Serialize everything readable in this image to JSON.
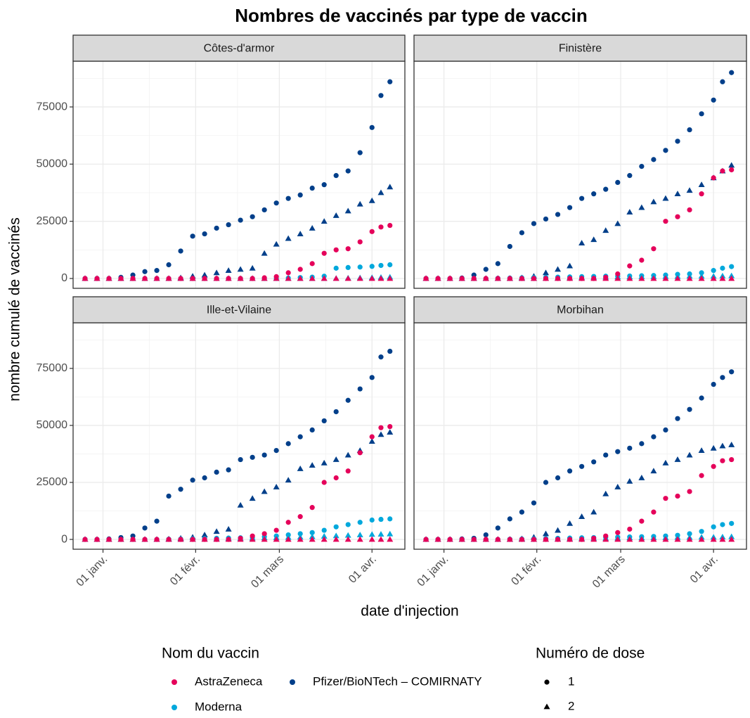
{
  "chart_data": {
    "type": "scatter",
    "title": "Nombres de vaccinés par type de vaccin",
    "xlabel": "date d'injection",
    "ylabel": "nombre cumulé de vaccinés",
    "x": [
      "12-26",
      "12-30",
      "01-03",
      "01-07",
      "01-11",
      "01-15",
      "01-19",
      "01-23",
      "01-27",
      "01-31",
      "02-04",
      "02-08",
      "02-12",
      "02-16",
      "02-20",
      "02-24",
      "02-28",
      "03-04",
      "03-08",
      "03-12",
      "03-16",
      "03-20",
      "03-24",
      "03-28",
      "04-01",
      "04-04",
      "04-07"
    ],
    "xlim": [
      "12-22",
      "04-12"
    ],
    "xticks": [
      {
        "value": "01-01",
        "label": "01 janv."
      },
      {
        "value": "02-01",
        "label": "01 févr."
      },
      {
        "value": "03-01",
        "label": "01 mars"
      },
      {
        "value": "04-01",
        "label": "01 avr."
      }
    ],
    "ylim": [
      -4300,
      95000
    ],
    "yticks": [
      0,
      25000,
      50000,
      75000
    ],
    "grid": true,
    "legend_vaccine_title": "Nom du vaccin",
    "legend_dose_title": "Numéro de dose",
    "vaccines": [
      {
        "name": "AstraZeneca",
        "color": "#e5005a"
      },
      {
        "name": "Pfizer/BioNTech – COMIRNATY",
        "color": "#003f8a"
      },
      {
        "name": "Moderna",
        "color": "#00a8dc"
      }
    ],
    "doses": [
      {
        "name": "1",
        "shape": "circle"
      },
      {
        "name": "2",
        "shape": "triangle"
      }
    ],
    "facets": [
      {
        "name": "Côtes-d'armor",
        "series": [
          {
            "vaccine": "Pfizer/BioNTech – COMIRNATY",
            "dose": "1",
            "values": [
              0,
              0,
              0,
              500,
              1500,
              3000,
              3500,
              6000,
              12000,
              18500,
              19500,
              22000,
              23500,
              25500,
              27000,
              30000,
              33000,
              35000,
              36500,
              39500,
              41000,
              45000,
              47000,
              55000,
              66000,
              80000,
              86000
            ]
          },
          {
            "vaccine": "Pfizer/BioNTech – COMIRNATY",
            "dose": "2",
            "values": [
              0,
              0,
              0,
              0,
              0,
              0,
              0,
              0,
              300,
              1000,
              1500,
              2500,
              3500,
              4000,
              4500,
              11000,
              15000,
              17500,
              19500,
              22000,
              25000,
              27500,
              29500,
              32500,
              34000,
              37500,
              40000
            ]
          },
          {
            "vaccine": "Moderna",
            "dose": "1",
            "values": [
              0,
              0,
              0,
              0,
              0,
              0,
              0,
              0,
              0,
              0,
              0,
              0,
              0,
              0,
              0,
              0,
              0,
              200,
              400,
              600,
              1000,
              4500,
              4800,
              5000,
              5300,
              5700,
              6000
            ]
          },
          {
            "vaccine": "Moderna",
            "dose": "2",
            "values": [
              0,
              0,
              0,
              0,
              0,
              0,
              0,
              0,
              0,
              0,
              0,
              0,
              0,
              0,
              0,
              0,
              0,
              0,
              0,
              0,
              0,
              100,
              200,
              300,
              400,
              500,
              600
            ]
          },
          {
            "vaccine": "AstraZeneca",
            "dose": "1",
            "values": [
              0,
              0,
              0,
              0,
              0,
              0,
              0,
              0,
              0,
              0,
              0,
              0,
              0,
              0,
              0,
              300,
              800,
              2500,
              4000,
              6500,
              11000,
              12500,
              13000,
              16000,
              20500,
              22500,
              23200
            ]
          },
          {
            "vaccine": "AstraZeneca",
            "dose": "2",
            "values": [
              0,
              0,
              0,
              0,
              0,
              0,
              0,
              0,
              0,
              0,
              0,
              0,
              0,
              0,
              0,
              0,
              0,
              0,
              0,
              0,
              0,
              0,
              0,
              0,
              0,
              0,
              0
            ]
          }
        ]
      },
      {
        "name": "Finistère",
        "series": [
          {
            "vaccine": "Pfizer/BioNTech – COMIRNATY",
            "dose": "1",
            "values": [
              0,
              0,
              0,
              200,
              1500,
              4000,
              6500,
              14000,
              20000,
              24000,
              26000,
              28000,
              31000,
              35000,
              37000,
              39000,
              42000,
              45000,
              49000,
              52000,
              56000,
              60000,
              65000,
              72000,
              78000,
              86000,
              90000
            ]
          },
          {
            "vaccine": "Pfizer/BioNTech – COMIRNATY",
            "dose": "2",
            "values": [
              0,
              0,
              0,
              0,
              0,
              0,
              0,
              0,
              300,
              1000,
              2500,
              4000,
              5500,
              15500,
              17000,
              21000,
              24000,
              29000,
              31000,
              33500,
              35000,
              37000,
              38500,
              41000,
              44000,
              47000,
              49500
            ]
          },
          {
            "vaccine": "Moderna",
            "dose": "1",
            "values": [
              0,
              0,
              0,
              0,
              0,
              0,
              100,
              200,
              300,
              400,
              500,
              600,
              700,
              800,
              900,
              1000,
              1000,
              1100,
              1200,
              1300,
              1500,
              1800,
              2000,
              2500,
              3500,
              4500,
              5200
            ]
          },
          {
            "vaccine": "Moderna",
            "dose": "2",
            "values": [
              0,
              0,
              0,
              0,
              0,
              0,
              0,
              0,
              0,
              0,
              100,
              200,
              300,
              400,
              500,
              600,
              700,
              700,
              800,
              800,
              900,
              900,
              1000,
              1000,
              1000,
              1100,
              1200
            ]
          },
          {
            "vaccine": "AstraZeneca",
            "dose": "1",
            "values": [
              0,
              0,
              0,
              0,
              0,
              0,
              0,
              0,
              0,
              0,
              0,
              0,
              0,
              0,
              0,
              500,
              2000,
              5500,
              8000,
              13000,
              25000,
              27000,
              30000,
              37000,
              44000,
              47000,
              47500
            ]
          },
          {
            "vaccine": "AstraZeneca",
            "dose": "2",
            "values": [
              0,
              0,
              0,
              0,
              0,
              0,
              0,
              0,
              0,
              0,
              0,
              0,
              0,
              0,
              0,
              0,
              0,
              0,
              0,
              0,
              0,
              0,
              0,
              0,
              0,
              0,
              0
            ]
          }
        ]
      },
      {
        "name": "Ille-et-Vilaine",
        "series": [
          {
            "vaccine": "Pfizer/BioNTech – COMIRNATY",
            "dose": "1",
            "values": [
              0,
              0,
              200,
              800,
              1500,
              5000,
              8000,
              19000,
              22000,
              26000,
              27000,
              29500,
              30500,
              35000,
              36000,
              37000,
              39000,
              42000,
              45000,
              48000,
              52000,
              56000,
              61000,
              66000,
              71000,
              80000,
              82500
            ]
          },
          {
            "vaccine": "Pfizer/BioNTech – COMIRNATY",
            "dose": "2",
            "values": [
              0,
              0,
              0,
              0,
              0,
              0,
              0,
              200,
              500,
              1000,
              2000,
              3500,
              4500,
              15000,
              18000,
              21000,
              23000,
              26000,
              31000,
              32500,
              33500,
              35000,
              37000,
              39000,
              43000,
              46000,
              47000
            ]
          },
          {
            "vaccine": "Moderna",
            "dose": "1",
            "values": [
              0,
              0,
              0,
              0,
              0,
              0,
              0,
              100,
              200,
              300,
              400,
              500,
              600,
              700,
              800,
              1200,
              1500,
              2000,
              2500,
              3000,
              4000,
              5500,
              6500,
              7500,
              8500,
              8800,
              9000
            ]
          },
          {
            "vaccine": "Moderna",
            "dose": "2",
            "values": [
              0,
              0,
              0,
              0,
              0,
              0,
              0,
              0,
              0,
              100,
              200,
              300,
              400,
              500,
              600,
              700,
              800,
              900,
              1000,
              1200,
              1400,
              1600,
              1800,
              2000,
              2200,
              2300,
              2400
            ]
          },
          {
            "vaccine": "AstraZeneca",
            "dose": "1",
            "values": [
              0,
              0,
              0,
              0,
              0,
              0,
              0,
              0,
              0,
              0,
              0,
              0,
              0,
              500,
              1500,
              2500,
              4000,
              7500,
              10000,
              14000,
              25000,
              27000,
              30000,
              38000,
              45000,
              49000,
              49500
            ]
          },
          {
            "vaccine": "AstraZeneca",
            "dose": "2",
            "values": [
              0,
              0,
              0,
              0,
              0,
              0,
              0,
              0,
              0,
              0,
              0,
              0,
              0,
              0,
              0,
              0,
              0,
              0,
              0,
              0,
              0,
              0,
              0,
              0,
              0,
              0,
              0
            ]
          }
        ]
      },
      {
        "name": "Morbihan",
        "series": [
          {
            "vaccine": "Pfizer/BioNTech – COMIRNATY",
            "dose": "1",
            "values": [
              0,
              0,
              0,
              200,
              500,
              2000,
              5000,
              9000,
              12000,
              16000,
              25000,
              27000,
              30000,
              32000,
              34000,
              37000,
              38500,
              40000,
              42000,
              45000,
              48000,
              53000,
              57000,
              62000,
              68000,
              71000,
              73500
            ]
          },
          {
            "vaccine": "Pfizer/BioNTech – COMIRNATY",
            "dose": "2",
            "values": [
              0,
              0,
              0,
              0,
              0,
              0,
              0,
              0,
              300,
              1000,
              2500,
              4000,
              7000,
              10000,
              12000,
              20000,
              23000,
              25500,
              27000,
              30000,
              33500,
              35000,
              37000,
              39000,
              40000,
              41000,
              41500
            ]
          },
          {
            "vaccine": "Moderna",
            "dose": "1",
            "values": [
              0,
              0,
              0,
              0,
              0,
              0,
              0,
              100,
              200,
              300,
              400,
              500,
              600,
              700,
              800,
              900,
              1000,
              1100,
              1200,
              1300,
              1500,
              1800,
              2500,
              3500,
              5500,
              6500,
              7000
            ]
          },
          {
            "vaccine": "Moderna",
            "dose": "2",
            "values": [
              0,
              0,
              0,
              0,
              0,
              0,
              0,
              0,
              0,
              0,
              100,
              200,
              300,
              400,
              500,
              500,
              600,
              700,
              700,
              800,
              800,
              900,
              900,
              1000,
              1000,
              1100,
              1200
            ]
          },
          {
            "vaccine": "AstraZeneca",
            "dose": "1",
            "values": [
              0,
              0,
              0,
              0,
              0,
              0,
              0,
              0,
              0,
              0,
              0,
              0,
              0,
              0,
              500,
              1500,
              3000,
              4500,
              8000,
              12000,
              18000,
              19000,
              21000,
              28000,
              32000,
              34500,
              35000
            ]
          },
          {
            "vaccine": "AstraZeneca",
            "dose": "2",
            "values": [
              0,
              0,
              0,
              0,
              0,
              0,
              0,
              0,
              0,
              0,
              0,
              0,
              0,
              0,
              0,
              0,
              0,
              0,
              0,
              0,
              0,
              0,
              0,
              0,
              0,
              0,
              0
            ]
          }
        ]
      }
    ]
  }
}
